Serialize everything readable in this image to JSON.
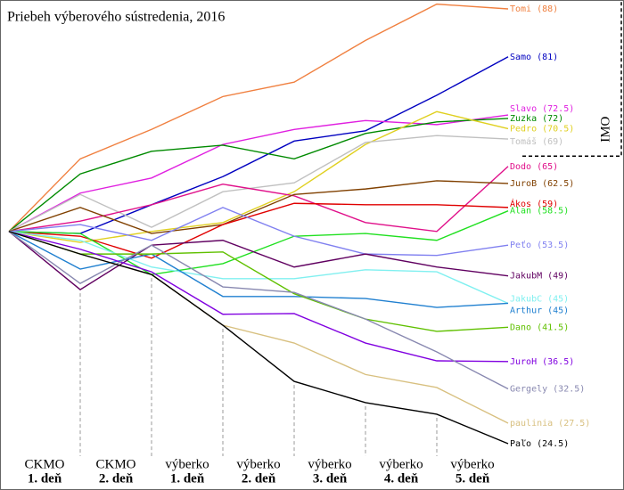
{
  "chart_data": {
    "type": "line",
    "title": "Priebeh výberového sústredenia, 2016",
    "categories": [
      null,
      [
        "CKMO",
        "1. deň"
      ],
      [
        "CKMO",
        "2. deň"
      ],
      [
        "výberko",
        "1. deň"
      ],
      [
        "výberko",
        "2. deň"
      ],
      [
        "výberko",
        "3. deň"
      ],
      [
        "výberko",
        "4. deň"
      ],
      [
        "výberko",
        "5. deň"
      ]
    ],
    "ylim": [
      24.5,
      88
    ],
    "annotations": [
      {
        "text": "IMO",
        "y": 66.5
      }
    ],
    "series": [
      {
        "name": "Tomi",
        "color": "#f08040",
        "values": [
          55.5,
          66.1,
          70.4,
          75.2,
          77.3,
          83.4,
          88.7,
          88
        ],
        "value_labels": [
          null,
          null,
          null,
          null,
          null,
          null,
          null,
          "(88)"
        ]
      },
      {
        "name": "Samo",
        "color": "#0000c0",
        "values": [
          55.5,
          55.2,
          59.4,
          63.5,
          68.7,
          70.2,
          75.4,
          81
        ],
        "value_labels": [
          null,
          null,
          null,
          null,
          null,
          null,
          null,
          "(81)"
        ]
      },
      {
        "name": "Slavo",
        "color": "#e020e0",
        "values": [
          55.5,
          61.1,
          63.3,
          68.2,
          70.4,
          71.7,
          71.1,
          72.5
        ],
        "value_labels": [
          null,
          null,
          null,
          null,
          null,
          null,
          null,
          "(72.5)"
        ]
      },
      {
        "name": "Zuzka",
        "color": "#008a00",
        "values": [
          55.5,
          63.9,
          67.2,
          68.1,
          66.1,
          69.8,
          71.5,
          72
        ],
        "value_labels": [
          null,
          null,
          null,
          null,
          null,
          null,
          null,
          "(72)"
        ]
      },
      {
        "name": "Pedro",
        "color": "#e0d020",
        "values": [
          55.5,
          53.9,
          55.5,
          56.8,
          61.3,
          68.2,
          73.0,
          70.5
        ],
        "value_labels": [
          null,
          null,
          null,
          null,
          null,
          null,
          null,
          "(70.5)"
        ]
      },
      {
        "name": "Tomáš",
        "color": "#c0c0c0",
        "values": [
          55.5,
          60.9,
          56.1,
          61.3,
          62.6,
          68.5,
          69.5,
          69
        ],
        "value_labels": [
          null,
          null,
          null,
          null,
          null,
          null,
          null,
          "(69)"
        ]
      },
      {
        "name": "Dodo",
        "color": "#e0108a",
        "values": [
          55.5,
          57.0,
          59.4,
          62.4,
          60.7,
          56.8,
          55.5,
          65
        ],
        "value_labels": [
          null,
          null,
          null,
          null,
          null,
          null,
          null,
          "(65)"
        ]
      },
      {
        "name": "JuroB",
        "color": "#804000",
        "values": [
          55.5,
          59.0,
          55.2,
          56.5,
          60.9,
          61.7,
          62.9,
          62.5
        ],
        "value_labels": [
          null,
          null,
          null,
          null,
          null,
          null,
          null,
          "(62.5)"
        ]
      },
      {
        "name": "Ákos",
        "color": "#e00000",
        "values": [
          55.5,
          54.8,
          51.6,
          56.5,
          59.6,
          59.4,
          59.4,
          59
        ],
        "value_labels": [
          null,
          null,
          null,
          null,
          null,
          null,
          null,
          "(59)"
        ]
      },
      {
        "name": "Alan",
        "color": "#20e020",
        "values": [
          55.5,
          55.2,
          49.2,
          50.8,
          54.8,
          55.2,
          54.2,
          58.5
        ],
        "value_labels": [
          null,
          null,
          null,
          null,
          null,
          null,
          null,
          "(58.5)"
        ]
      },
      {
        "name": "Peťo",
        "color": "#8080f0",
        "values": [
          55.5,
          56.5,
          54.2,
          59.0,
          54.8,
          52.2,
          52.0,
          53.5
        ],
        "value_labels": [
          null,
          null,
          null,
          null,
          null,
          null,
          null,
          "(53.5)"
        ]
      },
      {
        "name": "JakubM",
        "color": "#600060",
        "values": [
          55.5,
          47.0,
          53.5,
          54.2,
          50.3,
          52.2,
          50.3,
          49
        ],
        "value_labels": [
          null,
          null,
          null,
          null,
          null,
          null,
          null,
          "(49)"
        ]
      },
      {
        "name": "JakubC",
        "color": "#80f0f0",
        "values": [
          55.5,
          54.2,
          50.3,
          48.6,
          48.6,
          49.9,
          49.6,
          45
        ],
        "value_labels": [
          null,
          null,
          null,
          null,
          null,
          null,
          null,
          "(45)"
        ]
      },
      {
        "name": "Arthur",
        "color": "#2080d0",
        "values": [
          55.5,
          50.0,
          52.2,
          46.0,
          46.0,
          45.7,
          44.4,
          45
        ],
        "value_labels": [
          null,
          null,
          null,
          null,
          null,
          null,
          null,
          "(45)"
        ]
      },
      {
        "name": "Dano",
        "color": "#60c000",
        "values": [
          55.5,
          52.2,
          52.2,
          52.5,
          46.4,
          42.7,
          40.9,
          41.5
        ],
        "value_labels": [
          null,
          null,
          null,
          null,
          null,
          null,
          null,
          "(41.5)"
        ]
      },
      {
        "name": "JuroH",
        "color": "#8000e0",
        "values": [
          55.5,
          52.9,
          49.6,
          43.4,
          43.5,
          39.2,
          36.6,
          36.5
        ],
        "value_labels": [
          null,
          null,
          null,
          null,
          null,
          null,
          null,
          "(36.5)"
        ]
      },
      {
        "name": "Gergely",
        "color": "#8888b0",
        "values": [
          55.5,
          47.9,
          53.5,
          47.4,
          46.6,
          42.7,
          37.9,
          32.5
        ],
        "value_labels": [
          null,
          null,
          null,
          null,
          null,
          null,
          null,
          "(32.5)"
        ]
      },
      {
        "name": "paulinia",
        "color": "#d8c080",
        "values": [
          55.5,
          52.2,
          49.2,
          41.8,
          39.2,
          34.6,
          32.7,
          27.5
        ],
        "value_labels": [
          null,
          null,
          null,
          null,
          null,
          null,
          null,
          "(27.5)"
        ]
      },
      {
        "name": "Paľo",
        "color": "#000000",
        "values": [
          55.5,
          52.2,
          49.2,
          41.8,
          33.6,
          30.5,
          28.8,
          24.5
        ],
        "value_labels": [
          null,
          null,
          null,
          null,
          null,
          null,
          null,
          "(24.5)"
        ]
      }
    ]
  }
}
